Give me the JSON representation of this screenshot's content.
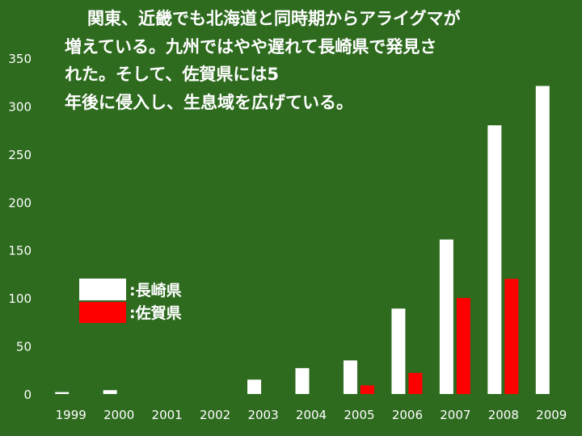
{
  "chart_data": {
    "type": "bar",
    "title_lines": [
      "関東、近畿でも北海道と同時期からアライグマが",
      "増えている。九州ではやや遅れて長崎県で発見さ",
      "れた。そして、佐賀県には5",
      "年後に侵入し、生息域を広げている。"
    ],
    "categories": [
      "1999",
      "2000",
      "2001",
      "2002",
      "2003",
      "2004",
      "2005",
      "2006",
      "2007",
      "2008",
      "2009"
    ],
    "series": [
      {
        "name": ":長崎県",
        "color": "#ffffff",
        "values": [
          2,
          4,
          0,
          0,
          15,
          27,
          35,
          89,
          161,
          280,
          321
        ]
      },
      {
        "name": ":佐賀県",
        "color": "#ff0000",
        "values": [
          0,
          0,
          0,
          0,
          0,
          0,
          9,
          22,
          100,
          120,
          0
        ]
      }
    ],
    "yticks": [
      "0",
      "50",
      "100",
      "150",
      "200",
      "250",
      "300",
      "350"
    ],
    "ylim": [
      0,
      350
    ],
    "grid": false,
    "legend_position": "left-middle"
  }
}
